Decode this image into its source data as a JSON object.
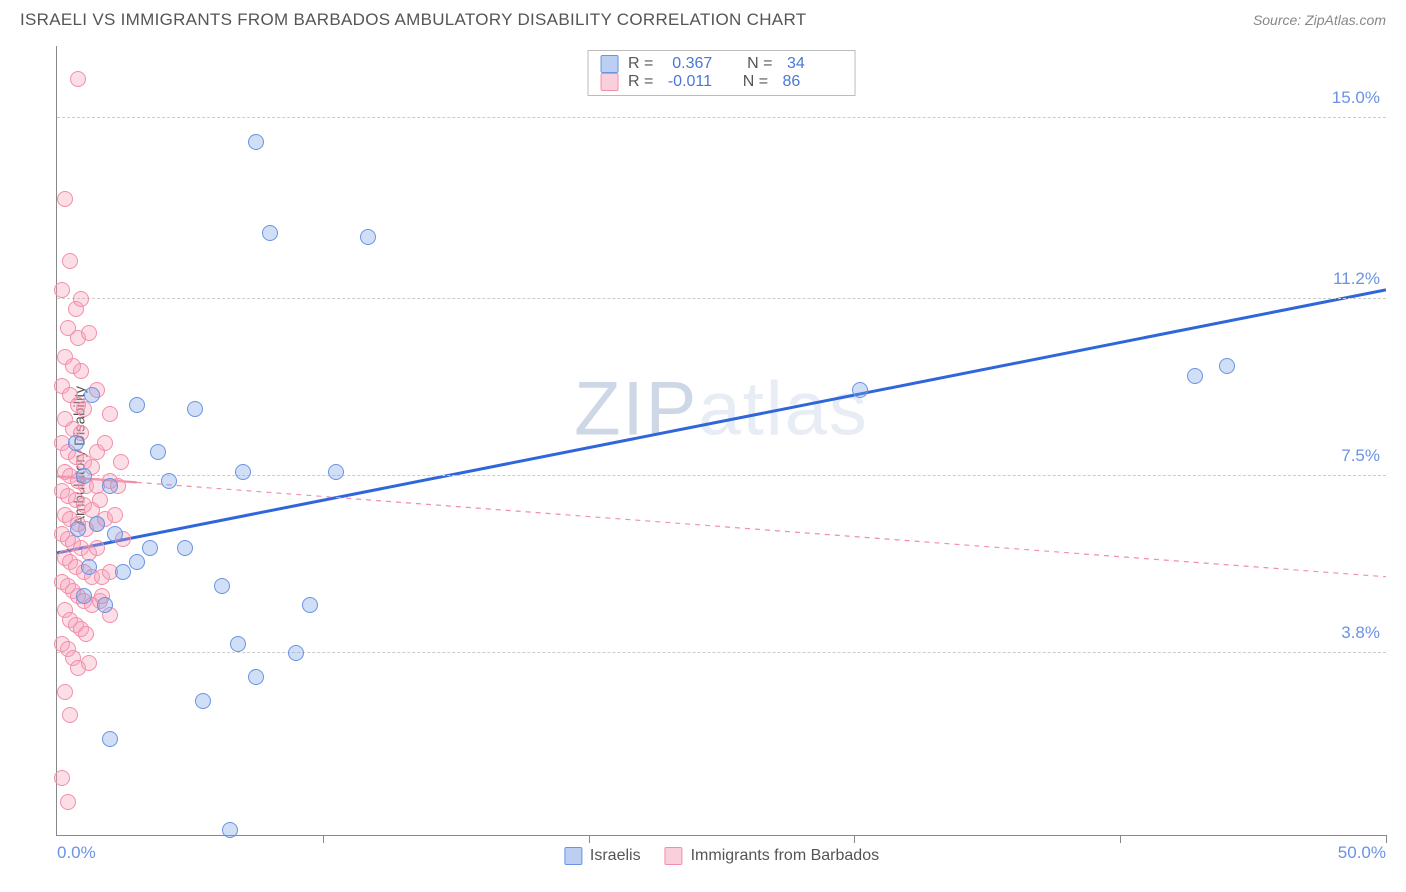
{
  "header": {
    "title": "ISRAELI VS IMMIGRANTS FROM BARBADOS AMBULATORY DISABILITY CORRELATION CHART",
    "source": "Source: ZipAtlas.com"
  },
  "chart": {
    "type": "scatter",
    "ylabel": "Ambulatory Disability",
    "watermark_dark": "ZIP",
    "watermark_light": "atlas",
    "background_color": "#ffffff",
    "grid_color": "#cccccc",
    "axis_color": "#888888",
    "xmin": 0,
    "xmax": 50,
    "ymin": 0,
    "ymax": 16.5,
    "x_ticks_label_left": "0.0%",
    "x_ticks_label_right": "50.0%",
    "x_minor_ticks": [
      10,
      20,
      30,
      40,
      50
    ],
    "y_gridlines": [
      {
        "y": 3.8,
        "label": "3.8%"
      },
      {
        "y": 7.5,
        "label": "7.5%"
      },
      {
        "y": 11.2,
        "label": "11.2%"
      },
      {
        "y": 15.0,
        "label": "15.0%"
      }
    ],
    "series": [
      {
        "name": "Israelis",
        "color_fill": "rgba(120,160,230,0.35)",
        "color_stroke": "#6b92e5",
        "css": "blue",
        "r_value": "0.367",
        "n_value": "34",
        "trend": {
          "x1": 0,
          "y1": 5.9,
          "x2": 50,
          "y2": 11.4,
          "solid": true,
          "stroke": "#2f66d9",
          "width": 3
        },
        "points": [
          {
            "x": 7.5,
            "y": 14.5
          },
          {
            "x": 8.0,
            "y": 12.6
          },
          {
            "x": 11.7,
            "y": 12.5
          },
          {
            "x": 3.0,
            "y": 9.0
          },
          {
            "x": 5.2,
            "y": 8.9
          },
          {
            "x": 3.8,
            "y": 8.0
          },
          {
            "x": 1.0,
            "y": 7.5
          },
          {
            "x": 2.0,
            "y": 7.3
          },
          {
            "x": 4.2,
            "y": 7.4
          },
          {
            "x": 7.0,
            "y": 7.6
          },
          {
            "x": 10.5,
            "y": 7.6
          },
          {
            "x": 1.5,
            "y": 6.5
          },
          {
            "x": 0.8,
            "y": 6.4
          },
          {
            "x": 2.2,
            "y": 6.3
          },
          {
            "x": 3.5,
            "y": 6.0
          },
          {
            "x": 4.8,
            "y": 6.0
          },
          {
            "x": 1.2,
            "y": 5.6
          },
          {
            "x": 2.5,
            "y": 5.5
          },
          {
            "x": 3.0,
            "y": 5.7
          },
          {
            "x": 6.2,
            "y": 5.2
          },
          {
            "x": 1.0,
            "y": 5.0
          },
          {
            "x": 1.8,
            "y": 4.8
          },
          {
            "x": 9.5,
            "y": 4.8
          },
          {
            "x": 6.8,
            "y": 4.0
          },
          {
            "x": 7.5,
            "y": 3.3
          },
          {
            "x": 9.0,
            "y": 3.8
          },
          {
            "x": 5.5,
            "y": 2.8
          },
          {
            "x": 2.0,
            "y": 2.0
          },
          {
            "x": 6.5,
            "y": 0.1
          },
          {
            "x": 30.2,
            "y": 9.3
          },
          {
            "x": 42.8,
            "y": 9.6
          },
          {
            "x": 44.0,
            "y": 9.8
          },
          {
            "x": 0.7,
            "y": 8.2
          },
          {
            "x": 1.3,
            "y": 9.2
          }
        ]
      },
      {
        "name": "Immigrants from Barbados",
        "color_fill": "rgba(245,160,185,0.35)",
        "color_stroke": "#f28fa8",
        "css": "pink",
        "r_value": "-0.011",
        "n_value": "86",
        "trend": {
          "x1": 0,
          "y1": 7.5,
          "x2": 50,
          "y2": 5.4,
          "solid": false,
          "stroke": "#f28fa8",
          "width": 1.2,
          "solid_until": 3
        },
        "points": [
          {
            "x": 0.8,
            "y": 15.8
          },
          {
            "x": 0.3,
            "y": 13.3
          },
          {
            "x": 0.5,
            "y": 12.0
          },
          {
            "x": 0.2,
            "y": 11.4
          },
          {
            "x": 0.7,
            "y": 11.0
          },
          {
            "x": 0.4,
            "y": 10.6
          },
          {
            "x": 0.8,
            "y": 10.4
          },
          {
            "x": 0.3,
            "y": 10.0
          },
          {
            "x": 0.6,
            "y": 9.8
          },
          {
            "x": 0.9,
            "y": 9.7
          },
          {
            "x": 0.2,
            "y": 9.4
          },
          {
            "x": 0.5,
            "y": 9.2
          },
          {
            "x": 0.8,
            "y": 9.0
          },
          {
            "x": 1.0,
            "y": 8.9
          },
          {
            "x": 0.3,
            "y": 8.7
          },
          {
            "x": 0.6,
            "y": 8.5
          },
          {
            "x": 0.9,
            "y": 8.4
          },
          {
            "x": 0.2,
            "y": 8.2
          },
          {
            "x": 0.4,
            "y": 8.0
          },
          {
            "x": 0.7,
            "y": 7.9
          },
          {
            "x": 1.0,
            "y": 7.8
          },
          {
            "x": 1.3,
            "y": 7.7
          },
          {
            "x": 0.3,
            "y": 7.6
          },
          {
            "x": 0.5,
            "y": 7.5
          },
          {
            "x": 0.8,
            "y": 7.4
          },
          {
            "x": 1.1,
            "y": 7.3
          },
          {
            "x": 1.5,
            "y": 7.3
          },
          {
            "x": 0.2,
            "y": 7.2
          },
          {
            "x": 0.4,
            "y": 7.1
          },
          {
            "x": 0.7,
            "y": 7.0
          },
          {
            "x": 1.0,
            "y": 6.9
          },
          {
            "x": 1.3,
            "y": 6.8
          },
          {
            "x": 1.6,
            "y": 7.0
          },
          {
            "x": 0.3,
            "y": 6.7
          },
          {
            "x": 0.5,
            "y": 6.6
          },
          {
            "x": 0.8,
            "y": 6.5
          },
          {
            "x": 1.1,
            "y": 6.4
          },
          {
            "x": 1.5,
            "y": 6.5
          },
          {
            "x": 1.8,
            "y": 6.6
          },
          {
            "x": 0.2,
            "y": 6.3
          },
          {
            "x": 0.4,
            "y": 6.2
          },
          {
            "x": 0.6,
            "y": 6.1
          },
          {
            "x": 0.9,
            "y": 6.0
          },
          {
            "x": 1.2,
            "y": 5.9
          },
          {
            "x": 1.5,
            "y": 6.0
          },
          {
            "x": 0.3,
            "y": 5.8
          },
          {
            "x": 0.5,
            "y": 5.7
          },
          {
            "x": 0.7,
            "y": 5.6
          },
          {
            "x": 1.0,
            "y": 5.5
          },
          {
            "x": 1.3,
            "y": 5.4
          },
          {
            "x": 1.7,
            "y": 5.4
          },
          {
            "x": 2.0,
            "y": 5.5
          },
          {
            "x": 0.2,
            "y": 5.3
          },
          {
            "x": 0.4,
            "y": 5.2
          },
          {
            "x": 0.6,
            "y": 5.1
          },
          {
            "x": 0.8,
            "y": 5.0
          },
          {
            "x": 1.0,
            "y": 4.9
          },
          {
            "x": 1.3,
            "y": 4.8
          },
          {
            "x": 1.6,
            "y": 4.9
          },
          {
            "x": 2.0,
            "y": 7.4
          },
          {
            "x": 2.3,
            "y": 7.3
          },
          {
            "x": 0.3,
            "y": 4.7
          },
          {
            "x": 0.5,
            "y": 4.5
          },
          {
            "x": 0.7,
            "y": 4.4
          },
          {
            "x": 0.9,
            "y": 4.3
          },
          {
            "x": 1.1,
            "y": 4.2
          },
          {
            "x": 0.2,
            "y": 4.0
          },
          {
            "x": 0.4,
            "y": 3.9
          },
          {
            "x": 0.6,
            "y": 3.7
          },
          {
            "x": 0.8,
            "y": 3.5
          },
          {
            "x": 0.3,
            "y": 3.0
          },
          {
            "x": 0.5,
            "y": 2.5
          },
          {
            "x": 0.2,
            "y": 1.2
          },
          {
            "x": 0.4,
            "y": 0.7
          },
          {
            "x": 1.5,
            "y": 8.0
          },
          {
            "x": 1.8,
            "y": 8.2
          },
          {
            "x": 2.2,
            "y": 6.7
          },
          {
            "x": 2.5,
            "y": 6.2
          },
          {
            "x": 1.2,
            "y": 10.5
          },
          {
            "x": 0.9,
            "y": 11.2
          },
          {
            "x": 1.5,
            "y": 9.3
          },
          {
            "x": 2.0,
            "y": 8.8
          },
          {
            "x": 2.4,
            "y": 7.8
          },
          {
            "x": 1.7,
            "y": 5.0
          },
          {
            "x": 2.0,
            "y": 4.6
          },
          {
            "x": 1.2,
            "y": 3.6
          }
        ]
      }
    ],
    "legend_bottom": [
      {
        "swatch": "blue",
        "label": "Israelis"
      },
      {
        "swatch": "pink",
        "label": "Immigrants from Barbados"
      }
    ]
  }
}
